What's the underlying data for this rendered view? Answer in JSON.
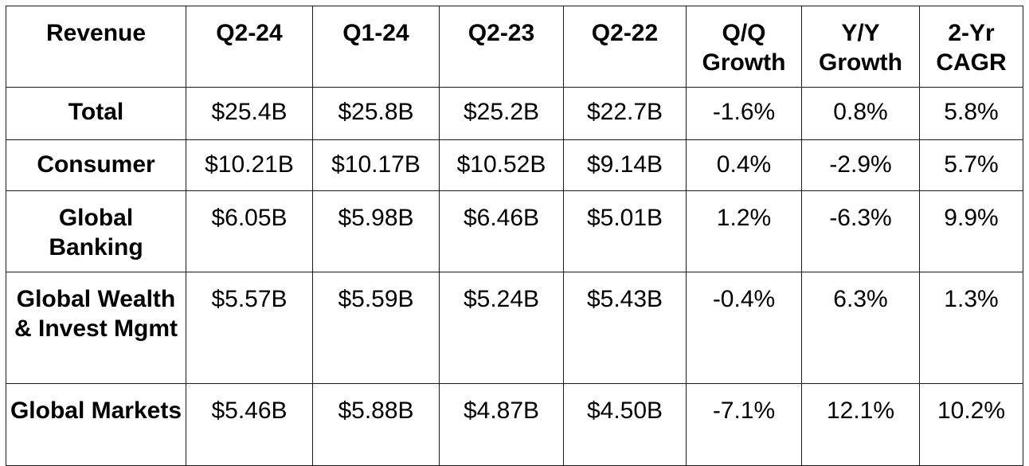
{
  "table": {
    "headers": [
      "Revenue",
      "Q2-24",
      "Q1-24",
      "Q2-23",
      "Q2-22",
      "Q/Q Growth",
      "Y/Y Growth",
      "2-Yr CAGR"
    ],
    "rows": [
      {
        "label": "Total",
        "cells": [
          "$25.4B",
          "$25.8B",
          "$25.2B",
          "$22.7B",
          "-1.6%",
          "0.8%",
          "5.8%"
        ]
      },
      {
        "label": "Consumer",
        "cells": [
          "$10.21B",
          "$10.17B",
          "$10.52B",
          "$9.14B",
          "0.4%",
          "-2.9%",
          "5.7%"
        ]
      },
      {
        "label": "Global Banking",
        "cells": [
          "$6.05B",
          "$5.98B",
          "$6.46B",
          "$5.01B",
          "1.2%",
          "-6.3%",
          "9.9%"
        ]
      },
      {
        "label": "Global Wealth & Invest Mgmt",
        "cells": [
          "$5.57B",
          "$5.59B",
          "$5.24B",
          "$5.43B",
          "-0.4%",
          "6.3%",
          "1.3%"
        ]
      },
      {
        "label": "Global Markets",
        "cells": [
          "$5.46B",
          "$5.88B",
          "$4.87B",
          "$4.50B",
          "-7.1%",
          "12.1%",
          "10.2%"
        ]
      }
    ]
  }
}
